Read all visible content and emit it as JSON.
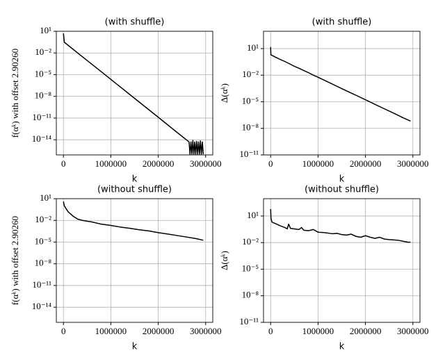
{
  "chart_data": [
    {
      "type": "line",
      "title": "(with shuffle)",
      "xlabel": "k",
      "ylabel": "f(αᵏ) with offset 2.90260",
      "color": "#000000",
      "yscale": "log",
      "grid": true,
      "x": [
        0,
        20000,
        400000,
        800000,
        1200000,
        1600000,
        2000000,
        2400000,
        2650000,
        2670000,
        2690000,
        2710000,
        2730000,
        2750000,
        2770000,
        2790000,
        2810000,
        2830000,
        2850000,
        2870000,
        2890000,
        2910000,
        2930000,
        2950000
      ],
      "values": [
        5,
        0.3,
        0.003,
        2.5e-05,
        2e-07,
        1.6e-09,
        1.3e-11,
        1e-13,
        5e-15,
        1e-16,
        5e-15,
        1e-16,
        8e-15,
        1e-16,
        5e-15,
        1e-16,
        6e-15,
        1e-16,
        5e-15,
        1e-16,
        7e-15,
        1e-16,
        5e-15,
        1e-16
      ],
      "xlim": [
        -150000,
        3150000
      ],
      "xticks": [
        0,
        1000000,
        2000000,
        3000000
      ],
      "ylim": [
        8e-17,
        10
      ],
      "yticks": [
        {
          "value": 10,
          "label": "10¹"
        },
        {
          "value": 0.01,
          "label": "10⁻²"
        },
        {
          "value": 1e-05,
          "label": "10⁻⁵"
        },
        {
          "value": 1e-08,
          "label": "10⁻⁸"
        },
        {
          "value": 1e-11,
          "label": "10⁻¹¹"
        },
        {
          "value": 1e-14,
          "label": "10⁻¹⁴"
        }
      ]
    },
    {
      "type": "line",
      "title": "(with shuffle)",
      "xlabel": "k",
      "ylabel": "Δ(αᵏ)",
      "color": "#000000",
      "yscale": "log",
      "grid": true,
      "x": [
        0,
        5000,
        100000,
        200000,
        300000,
        400000,
        500000,
        600000,
        700000,
        800000,
        900000,
        1000000,
        1200000,
        1400000,
        1600000,
        1800000,
        2000000,
        2200000,
        2400000,
        2600000,
        2800000,
        2950000
      ],
      "values": [
        15,
        2,
        1.1,
        0.6,
        0.35,
        0.19,
        0.1,
        0.06,
        0.033,
        0.019,
        0.01,
        0.0058,
        0.0018,
        0.00055,
        0.00017,
        5.4e-05,
        1.7e-05,
        5.1e-06,
        1.6e-06,
        5e-07,
        1.5e-07,
        6.5e-08
      ],
      "xlim": [
        -150000,
        3150000
      ],
      "xticks": [
        0,
        1000000,
        2000000,
        3000000
      ],
      "ylim": [
        1e-11,
        900
      ],
      "yticks": [
        {
          "value": 10,
          "label": "10¹"
        },
        {
          "value": 0.01,
          "label": "10⁻²"
        },
        {
          "value": 1e-05,
          "label": "10⁻⁵"
        },
        {
          "value": 1e-08,
          "label": "10⁻⁸"
        },
        {
          "value": 1e-11,
          "label": "10⁻¹¹"
        }
      ]
    },
    {
      "type": "line",
      "title": "(without shuffle)",
      "xlabel": "k",
      "ylabel": "f(αᵏ) with offset 2.90260",
      "color": "#000000",
      "yscale": "log",
      "grid": true,
      "x": [
        0,
        20000,
        100000,
        200000,
        300000,
        400000,
        600000,
        800000,
        1000000,
        1200000,
        1400000,
        1600000,
        1800000,
        2000000,
        2200000,
        2400000,
        2600000,
        2800000,
        2950000
      ],
      "values": [
        4,
        1,
        0.15,
        0.04,
        0.015,
        0.01,
        0.006,
        0.003,
        0.002,
        0.0012,
        0.0008,
        0.0005,
        0.00035,
        0.0002,
        0.00013,
        8e-05,
        5e-05,
        3e-05,
        1.8e-05
      ],
      "xlim": [
        -150000,
        3150000
      ],
      "xticks": [
        0,
        1000000,
        2000000,
        3000000
      ],
      "ylim": [
        8e-17,
        10
      ],
      "yticks": [
        {
          "value": 10,
          "label": "10¹"
        },
        {
          "value": 0.01,
          "label": "10⁻²"
        },
        {
          "value": 1e-05,
          "label": "10⁻⁵"
        },
        {
          "value": 1e-08,
          "label": "10⁻⁸"
        },
        {
          "value": 1e-11,
          "label": "10⁻¹¹"
        },
        {
          "value": 1e-14,
          "label": "10⁻¹⁴"
        }
      ]
    },
    {
      "type": "line",
      "title": "(without shuffle)",
      "xlabel": "k",
      "ylabel": "Δ(αᵏ)",
      "color": "#000000",
      "yscale": "log",
      "grid": true,
      "x": [
        0,
        8000,
        30000,
        100000,
        200000,
        300000,
        350000,
        380000,
        420000,
        500000,
        600000,
        650000,
        700000,
        800000,
        900000,
        1000000,
        1100000,
        1200000,
        1300000,
        1400000,
        1500000,
        1600000,
        1700000,
        1800000,
        1900000,
        2000000,
        2100000,
        2200000,
        2300000,
        2400000,
        2500000,
        2600000,
        2700000,
        2800000,
        2900000,
        2950000
      ],
      "values": [
        60,
        5,
        2,
        1.4,
        0.8,
        0.5,
        0.35,
        1.2,
        0.4,
        0.35,
        0.3,
        0.5,
        0.25,
        0.22,
        0.3,
        0.15,
        0.14,
        0.12,
        0.1,
        0.11,
        0.08,
        0.07,
        0.09,
        0.05,
        0.04,
        0.06,
        0.04,
        0.03,
        0.04,
        0.025,
        0.022,
        0.02,
        0.018,
        0.014,
        0.011,
        0.011
      ],
      "xlim": [
        -150000,
        3150000
      ],
      "xticks": [
        0,
        1000000,
        2000000,
        3000000
      ],
      "ylim": [
        1e-11,
        900
      ],
      "yticks": [
        {
          "value": 10,
          "label": "10¹"
        },
        {
          "value": 0.01,
          "label": "10⁻²"
        },
        {
          "value": 1e-05,
          "label": "10⁻⁵"
        },
        {
          "value": 1e-08,
          "label": "10⁻⁸"
        },
        {
          "value": 1e-11,
          "label": "10⁻¹¹"
        }
      ]
    }
  ]
}
